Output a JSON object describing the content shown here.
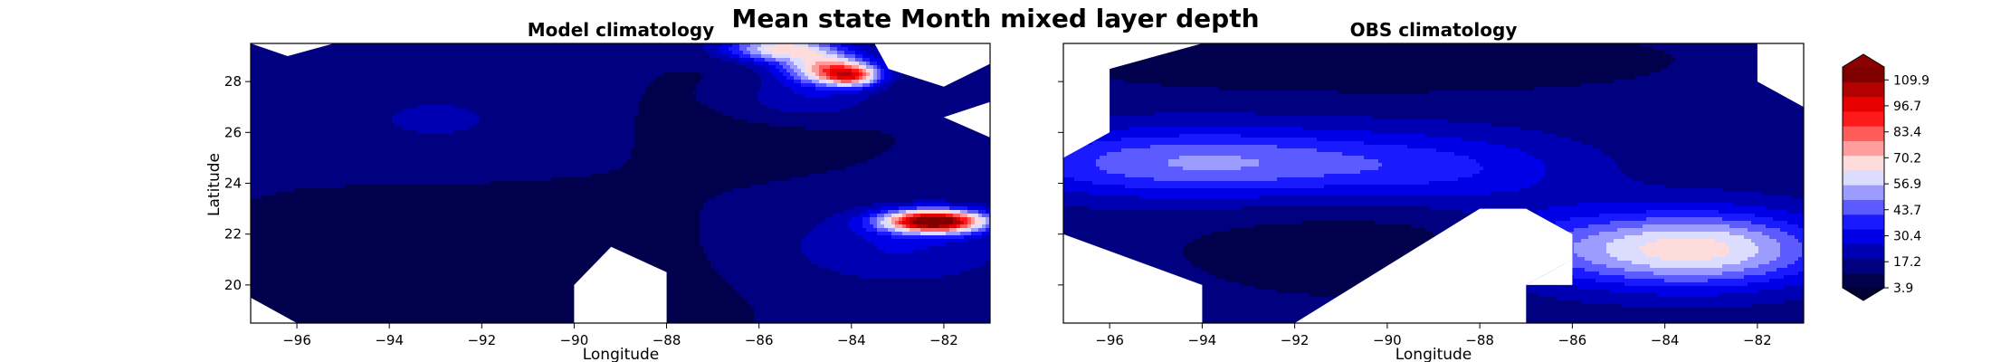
{
  "figure": {
    "suptitle": "Mean state Month mixed layer depth"
  },
  "colors": {
    "cmap": [
      "#00004c",
      "#000080",
      "#0000b3",
      "#0000e6",
      "#1a1aff",
      "#5b5bff",
      "#9c9cff",
      "#dcdcff",
      "#ffdcdc",
      "#ff9c9c",
      "#ff5b5b",
      "#ff1a1a",
      "#e60000",
      "#b30000",
      "#800000"
    ],
    "land": "#ffffff"
  },
  "chart_data": [
    {
      "type": "heatmap",
      "title": "Model climatology",
      "xlabel": "Longitude",
      "ylabel": "Latitude",
      "xlim": [
        -97,
        -81
      ],
      "ylim": [
        18.5,
        29.5
      ],
      "xticks": [
        -96,
        -94,
        -92,
        -90,
        -88,
        -86,
        -84,
        -82
      ],
      "xtick_labels": [
        "−96",
        "−94",
        "−92",
        "−90",
        "−88",
        "−86",
        "−84",
        "−82"
      ],
      "yticks": [
        20,
        22,
        24,
        26,
        28
      ],
      "ytick_labels": [
        "20",
        "22",
        "24",
        "26",
        "28"
      ],
      "field_units": "mixed layer depth",
      "background_level": 12,
      "blobs": [
        {
          "lon": -92.0,
          "lat": 20.5,
          "value": -4,
          "rx": 5.0,
          "ry": 3.0
        },
        {
          "lon": -86.0,
          "lat": 26.5,
          "value": -3,
          "rx": 2.5,
          "ry": 2.0
        },
        {
          "lon": -93.0,
          "lat": 26.5,
          "value": 8,
          "rx": 2.5,
          "ry": 1.5
        },
        {
          "lon": -84.5,
          "lat": 28.5,
          "value": 60,
          "rx": 1.0,
          "ry": 0.6
        },
        {
          "lon": -85.5,
          "lat": 29.3,
          "value": 55,
          "rx": 1.2,
          "ry": 0.5
        },
        {
          "lon": -84.0,
          "lat": 28.2,
          "value": 50,
          "rx": 0.6,
          "ry": 0.4
        },
        {
          "lon": -85.0,
          "lat": 27.3,
          "value": 15,
          "rx": 1.5,
          "ry": 0.8
        },
        {
          "lon": -82.2,
          "lat": 22.5,
          "value": 105,
          "rx": 1.1,
          "ry": 0.45
        },
        {
          "lon": -83.0,
          "lat": 21.5,
          "value": 15,
          "rx": 2.5,
          "ry": 1.5
        }
      ],
      "masks": [
        [
          [
            -97.0,
            29.5
          ],
          [
            -95.2,
            29.5
          ],
          [
            -96.2,
            29.0
          ]
        ],
        [
          [
            -83.5,
            29.5
          ],
          [
            -81.0,
            29.5
          ],
          [
            -81.0,
            28.7
          ],
          [
            -82.0,
            27.8
          ],
          [
            -83.2,
            28.5
          ]
        ],
        [
          [
            -81.0,
            27.2
          ],
          [
            -82.0,
            26.6
          ],
          [
            -81.0,
            25.8
          ]
        ],
        [
          [
            -97.0,
            19.5
          ],
          [
            -96.0,
            18.5
          ],
          [
            -97.0,
            18.5
          ]
        ],
        [
          [
            -90.0,
            18.5
          ],
          [
            -90.0,
            20.0
          ],
          [
            -89.2,
            21.5
          ],
          [
            -88.0,
            20.5
          ],
          [
            -88.0,
            18.5
          ]
        ]
      ]
    },
    {
      "type": "heatmap",
      "title": "OBS climatology",
      "xlabel": "Longitude",
      "ylabel": "",
      "xlim": [
        -97,
        -81
      ],
      "ylim": [
        18.5,
        29.5
      ],
      "xticks": [
        -96,
        -94,
        -92,
        -90,
        -88,
        -86,
        -84,
        -82
      ],
      "xtick_labels": [
        "−96",
        "−94",
        "−92",
        "−90",
        "−88",
        "−86",
        "−84",
        "−82"
      ],
      "yticks": [
        20,
        22,
        24,
        26,
        28
      ],
      "ytick_labels": [],
      "field_units": "mixed layer depth",
      "background_level": 14,
      "blobs": [
        {
          "lon": -90.5,
          "lat": 21.5,
          "value": -7,
          "rx": 4.0,
          "ry": 2.0
        },
        {
          "lon": -90.5,
          "lat": 28.8,
          "value": -9,
          "rx": 6.0,
          "ry": 1.2
        },
        {
          "lon": -94.0,
          "lat": 24.8,
          "value": 36,
          "rx": 4.5,
          "ry": 1.4
        },
        {
          "lon": -88.5,
          "lat": 24.5,
          "value": 15,
          "rx": 3.0,
          "ry": 1.5
        },
        {
          "lon": -83.5,
          "lat": 21.4,
          "value": 55,
          "rx": 3.0,
          "ry": 1.5
        },
        {
          "lon": -86.5,
          "lat": 21.5,
          "value": 10,
          "rx": 1.5,
          "ry": 1.5
        }
      ],
      "masks": [
        [
          [
            -97.0,
            29.5
          ],
          [
            -94.0,
            29.5
          ],
          [
            -96.0,
            28.5
          ],
          [
            -96.0,
            26.0
          ],
          [
            -97.0,
            25.0
          ]
        ],
        [
          [
            -97.0,
            22.0
          ],
          [
            -94.0,
            20.0
          ],
          [
            -94.0,
            18.5
          ],
          [
            -97.0,
            18.5
          ]
        ],
        [
          [
            -94.0,
            18.5
          ],
          [
            -92.0,
            18.5
          ],
          [
            -92.0,
            18.5
          ]
        ],
        [
          [
            -92.0,
            18.5
          ],
          [
            -88.0,
            23.0
          ],
          [
            -87.0,
            23.0
          ],
          [
            -86.0,
            22.0
          ],
          [
            -86.0,
            21.0
          ],
          [
            -87.0,
            20.0
          ],
          [
            -87.0,
            18.5
          ]
        ],
        [
          [
            -86.0,
            21.0
          ],
          [
            -86.0,
            20.0
          ],
          [
            -87.0,
            20.0
          ]
        ],
        [
          [
            -81.0,
            29.5
          ],
          [
            -82.0,
            29.5
          ],
          [
            -82.0,
            28.0
          ],
          [
            -81.0,
            27.0
          ]
        ]
      ]
    }
  ],
  "colorbar": {
    "min": 3.9,
    "max": 116.5,
    "tick_values": [
      3.9,
      17.2,
      30.4,
      43.7,
      56.9,
      70.2,
      83.4,
      96.7,
      109.9
    ],
    "tick_labels": [
      "3.9",
      "17.2",
      "30.4",
      "43.7",
      "56.9",
      "70.2",
      "83.4",
      "96.7",
      "109.9"
    ],
    "extend": "both"
  }
}
